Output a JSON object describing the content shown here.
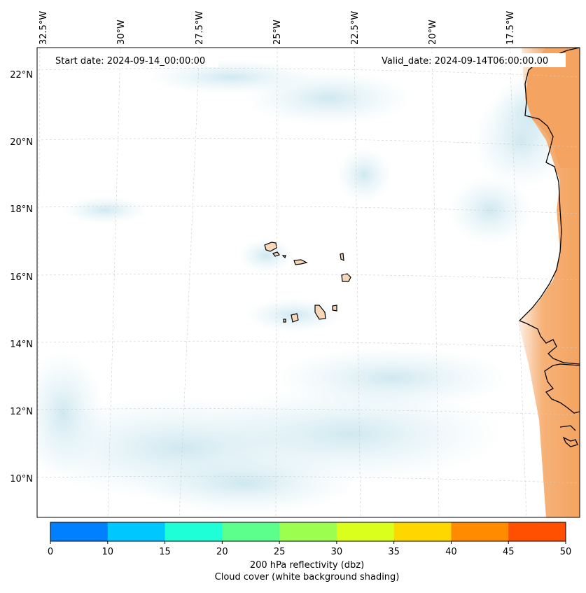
{
  "map": {
    "start_date": "Start date: 2024-09-14_00:00:00",
    "valid_date": "Valid_date: 2024-09-14T06:00:00.00",
    "lon_labels": [
      "32.5°W",
      "30°W",
      "27.5°W",
      "25°W",
      "22.5°W",
      "20°W",
      "17.5°W"
    ],
    "lat_labels": [
      "22°N",
      "20°N",
      "18°N",
      "16°N",
      "14°N",
      "12°N",
      "10°N"
    ],
    "colors": {
      "land": "#f4a460",
      "cloud": "#cfe7f0",
      "coast": "#000000",
      "grid": "#cccccc"
    }
  },
  "colorbar": {
    "ticks": [
      "0",
      "10",
      "15",
      "20",
      "25",
      "30",
      "35",
      "40",
      "45",
      "50"
    ],
    "colors": [
      "#0080ff",
      "#00c8ff",
      "#1effd8",
      "#5cff8c",
      "#9cff4f",
      "#daff1d",
      "#ffd700",
      "#ff8c00",
      "#ff4f00"
    ],
    "label": "200 hPa reflectivity (dbz)",
    "sublabel": "Cloud cover (white background shading)"
  }
}
